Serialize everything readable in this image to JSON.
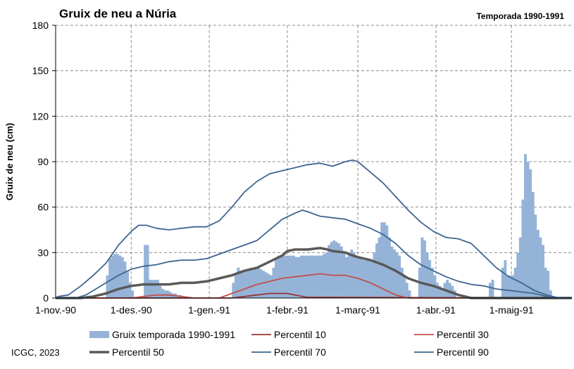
{
  "chart_data": {
    "type": "bar+line",
    "title": "Gruix de neu a Núria",
    "subtitle": "Temporada 1990-1991",
    "ylabel": "Gruix de neu (cm)",
    "xlabel": "",
    "ylim": [
      0,
      180
    ],
    "yticks": [
      "0",
      "30",
      "60",
      "90",
      "120",
      "150",
      "180"
    ],
    "xticks": [
      {
        "day": 0,
        "label": "1-nov.-90"
      },
      {
        "day": 30,
        "label": "1-des.-90"
      },
      {
        "day": 61,
        "label": "1-gen.-91"
      },
      {
        "day": 92,
        "label": "1-febr.-91"
      },
      {
        "day": 120,
        "label": "1-març-91"
      },
      {
        "day": 151,
        "label": "1-abr.-91"
      },
      {
        "day": 181,
        "label": "1-maig-91"
      }
    ],
    "x_range_days": [
      0,
      205
    ],
    "grid": "dashed vertical and horizontal",
    "legend_position": "bottom",
    "series": [
      {
        "name": "Gruix temporada 1990-1991",
        "kind": "bar",
        "color": "#95b3d7",
        "points": [
          [
            20,
            15
          ],
          [
            21,
            26
          ],
          [
            22,
            28
          ],
          [
            23,
            29
          ],
          [
            24,
            29
          ],
          [
            25,
            28
          ],
          [
            26,
            27
          ],
          [
            27,
            24
          ],
          [
            28,
            18
          ],
          [
            29,
            10
          ],
          [
            30,
            5
          ],
          [
            35,
            35
          ],
          [
            36,
            35
          ],
          [
            37,
            12
          ],
          [
            38,
            12
          ],
          [
            39,
            12
          ],
          [
            40,
            12
          ],
          [
            41,
            8
          ],
          [
            42,
            6
          ],
          [
            43,
            5
          ],
          [
            44,
            5
          ],
          [
            45,
            4
          ],
          [
            46,
            3
          ],
          [
            47,
            3
          ],
          [
            48,
            2
          ],
          [
            49,
            2
          ],
          [
            70,
            10
          ],
          [
            71,
            15
          ],
          [
            72,
            20
          ],
          [
            73,
            18
          ],
          [
            74,
            17
          ],
          [
            75,
            18
          ],
          [
            76,
            18
          ],
          [
            77,
            20
          ],
          [
            78,
            20
          ],
          [
            79,
            20
          ],
          [
            80,
            20
          ],
          [
            81,
            19
          ],
          [
            82,
            18
          ],
          [
            83,
            17
          ],
          [
            84,
            16
          ],
          [
            85,
            15
          ],
          [
            86,
            20
          ],
          [
            87,
            26
          ],
          [
            88,
            28
          ],
          [
            89,
            28
          ],
          [
            90,
            28
          ],
          [
            91,
            28
          ],
          [
            92,
            28
          ],
          [
            93,
            28
          ],
          [
            94,
            28
          ],
          [
            95,
            27
          ],
          [
            96,
            27
          ],
          [
            97,
            28
          ],
          [
            98,
            28
          ],
          [
            99,
            28
          ],
          [
            100,
            28
          ],
          [
            101,
            28
          ],
          [
            102,
            28
          ],
          [
            103,
            28
          ],
          [
            104,
            28
          ],
          [
            105,
            28
          ],
          [
            106,
            29
          ],
          [
            107,
            30
          ],
          [
            108,
            35
          ],
          [
            109,
            37
          ],
          [
            110,
            38
          ],
          [
            111,
            37
          ],
          [
            112,
            36
          ],
          [
            113,
            34
          ],
          [
            114,
            30
          ],
          [
            115,
            27
          ],
          [
            116,
            30
          ],
          [
            117,
            32
          ],
          [
            118,
            30
          ],
          [
            119,
            28
          ],
          [
            120,
            27
          ],
          [
            121,
            26
          ],
          [
            122,
            25
          ],
          [
            123,
            25
          ],
          [
            124,
            25
          ],
          [
            125,
            24
          ],
          [
            126,
            30
          ],
          [
            127,
            36
          ],
          [
            128,
            40
          ],
          [
            129,
            50
          ],
          [
            130,
            50
          ],
          [
            131,
            48
          ],
          [
            132,
            40
          ],
          [
            133,
            34
          ],
          [
            134,
            32
          ],
          [
            135,
            30
          ],
          [
            136,
            28
          ],
          [
            137,
            20
          ],
          [
            138,
            15
          ],
          [
            139,
            10
          ],
          [
            140,
            5
          ],
          [
            144,
            20
          ],
          [
            145,
            40
          ],
          [
            146,
            38
          ],
          [
            147,
            30
          ],
          [
            148,
            25
          ],
          [
            149,
            20
          ],
          [
            150,
            15
          ],
          [
            151,
            10
          ],
          [
            152,
            8
          ],
          [
            153,
            6
          ],
          [
            154,
            10
          ],
          [
            155,
            12
          ],
          [
            156,
            10
          ],
          [
            157,
            8
          ],
          [
            158,
            5
          ],
          [
            172,
            10
          ],
          [
            173,
            12
          ],
          [
            177,
            20
          ],
          [
            178,
            25
          ],
          [
            179,
            15
          ],
          [
            180,
            15
          ],
          [
            181,
            15
          ],
          [
            182,
            20
          ],
          [
            183,
            30
          ],
          [
            184,
            40
          ],
          [
            185,
            65
          ],
          [
            186,
            95
          ],
          [
            187,
            90
          ],
          [
            188,
            85
          ],
          [
            189,
            70
          ],
          [
            190,
            55
          ],
          [
            191,
            45
          ],
          [
            192,
            40
          ],
          [
            193,
            35
          ],
          [
            194,
            20
          ],
          [
            195,
            18
          ],
          [
            196,
            5
          ]
        ]
      },
      {
        "name": "Percentil 10",
        "kind": "line",
        "color": "#953735",
        "points": [
          [
            0,
            0
          ],
          [
            70,
            0
          ],
          [
            75,
            1
          ],
          [
            80,
            2
          ],
          [
            85,
            3
          ],
          [
            88,
            3
          ],
          [
            92,
            3
          ],
          [
            95,
            2
          ],
          [
            98,
            1
          ],
          [
            100,
            0.5
          ],
          [
            205,
            0
          ]
        ]
      },
      {
        "name": "Percentil 30",
        "kind": "line",
        "color": "#c0504d",
        "points": [
          [
            0,
            0
          ],
          [
            30,
            0
          ],
          [
            35,
            1
          ],
          [
            40,
            2
          ],
          [
            45,
            2
          ],
          [
            50,
            1
          ],
          [
            55,
            0
          ],
          [
            65,
            0
          ],
          [
            70,
            3
          ],
          [
            75,
            6
          ],
          [
            80,
            9
          ],
          [
            85,
            11
          ],
          [
            90,
            13
          ],
          [
            95,
            14
          ],
          [
            100,
            15
          ],
          [
            105,
            16
          ],
          [
            110,
            15
          ],
          [
            115,
            15
          ],
          [
            120,
            13
          ],
          [
            125,
            10
          ],
          [
            130,
            6
          ],
          [
            135,
            2
          ],
          [
            140,
            0
          ],
          [
            205,
            0
          ]
        ]
      },
      {
        "name": "Percentil 50",
        "kind": "line",
        "color": "#595959",
        "points": [
          [
            0,
            0
          ],
          [
            10,
            0
          ],
          [
            15,
            1
          ],
          [
            20,
            3
          ],
          [
            25,
            6
          ],
          [
            30,
            8
          ],
          [
            35,
            9
          ],
          [
            40,
            9
          ],
          [
            45,
            9
          ],
          [
            50,
            10
          ],
          [
            55,
            10
          ],
          [
            60,
            11
          ],
          [
            65,
            13
          ],
          [
            70,
            15
          ],
          [
            75,
            18
          ],
          [
            80,
            20
          ],
          [
            85,
            24
          ],
          [
            90,
            28
          ],
          [
            92,
            31
          ],
          [
            95,
            32
          ],
          [
            100,
            32
          ],
          [
            105,
            33
          ],
          [
            108,
            32
          ],
          [
            110,
            31
          ],
          [
            115,
            30
          ],
          [
            118,
            28
          ],
          [
            120,
            27
          ],
          [
            125,
            25
          ],
          [
            130,
            22
          ],
          [
            135,
            18
          ],
          [
            140,
            13
          ],
          [
            145,
            10
          ],
          [
            150,
            8
          ],
          [
            155,
            5
          ],
          [
            160,
            2
          ],
          [
            165,
            0
          ],
          [
            205,
            0
          ]
        ]
      },
      {
        "name": "Percentil 70",
        "kind": "line",
        "color": "#3d6591",
        "points": [
          [
            0,
            0
          ],
          [
            8,
            0
          ],
          [
            12,
            2
          ],
          [
            16,
            6
          ],
          [
            20,
            10
          ],
          [
            25,
            15
          ],
          [
            30,
            19
          ],
          [
            35,
            21
          ],
          [
            40,
            22
          ],
          [
            45,
            24
          ],
          [
            50,
            25
          ],
          [
            55,
            25
          ],
          [
            60,
            26
          ],
          [
            65,
            29
          ],
          [
            70,
            32
          ],
          [
            75,
            35
          ],
          [
            80,
            38
          ],
          [
            85,
            45
          ],
          [
            90,
            52
          ],
          [
            95,
            56
          ],
          [
            98,
            58
          ],
          [
            100,
            57
          ],
          [
            105,
            54
          ],
          [
            110,
            53
          ],
          [
            115,
            52
          ],
          [
            120,
            49
          ],
          [
            125,
            46
          ],
          [
            130,
            42
          ],
          [
            135,
            36
          ],
          [
            140,
            28
          ],
          [
            145,
            22
          ],
          [
            150,
            18
          ],
          [
            155,
            14
          ],
          [
            160,
            11
          ],
          [
            165,
            9
          ],
          [
            170,
            8
          ],
          [
            175,
            6
          ],
          [
            180,
            5
          ],
          [
            185,
            4
          ],
          [
            190,
            3
          ],
          [
            195,
            1
          ],
          [
            200,
            0
          ],
          [
            205,
            0
          ]
        ]
      },
      {
        "name": "Percentil 90",
        "kind": "line",
        "color": "#3d6591",
        "points": [
          [
            0,
            0
          ],
          [
            1,
            1
          ],
          [
            5,
            2
          ],
          [
            10,
            8
          ],
          [
            15,
            15
          ],
          [
            20,
            23
          ],
          [
            25,
            35
          ],
          [
            30,
            44
          ],
          [
            33,
            48
          ],
          [
            36,
            48
          ],
          [
            40,
            46
          ],
          [
            45,
            45
          ],
          [
            50,
            46
          ],
          [
            55,
            47
          ],
          [
            60,
            47
          ],
          [
            65,
            51
          ],
          [
            70,
            60
          ],
          [
            75,
            70
          ],
          [
            80,
            77
          ],
          [
            85,
            82
          ],
          [
            90,
            84
          ],
          [
            95,
            86
          ],
          [
            100,
            88
          ],
          [
            105,
            89
          ],
          [
            110,
            87
          ],
          [
            115,
            90
          ],
          [
            118,
            91
          ],
          [
            120,
            90
          ],
          [
            125,
            83
          ],
          [
            130,
            76
          ],
          [
            135,
            67
          ],
          [
            140,
            58
          ],
          [
            145,
            50
          ],
          [
            150,
            44
          ],
          [
            155,
            40
          ],
          [
            160,
            39
          ],
          [
            165,
            36
          ],
          [
            170,
            28
          ],
          [
            175,
            20
          ],
          [
            180,
            14
          ],
          [
            185,
            10
          ],
          [
            190,
            5
          ],
          [
            195,
            2
          ],
          [
            200,
            0
          ],
          [
            205,
            0
          ]
        ]
      }
    ],
    "credit": "ICGC, 2023"
  }
}
